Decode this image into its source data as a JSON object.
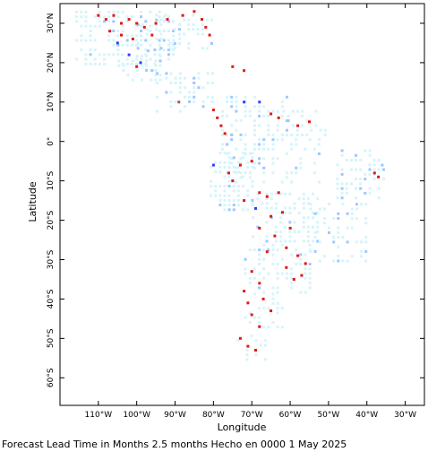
{
  "map": {
    "xlabel": "Longitude",
    "ylabel": "Latitude",
    "caption": "Forecast Lead Time in Months 2.5 months Hecho en 0000 1 May 2025",
    "lon_range": [
      -120,
      -25
    ],
    "lat_range": [
      -67,
      35
    ],
    "lon_ticks": [
      {
        "value": -110,
        "label": "110°W"
      },
      {
        "value": -100,
        "label": "100°W"
      },
      {
        "value": -90,
        "label": "90°W"
      },
      {
        "value": -80,
        "label": "80°W"
      },
      {
        "value": -70,
        "label": "70°W"
      },
      {
        "value": -60,
        "label": "60°W"
      },
      {
        "value": -50,
        "label": "50°W"
      },
      {
        "value": -40,
        "label": "40°W"
      },
      {
        "value": -30,
        "label": "30°W"
      }
    ],
    "lat_ticks": [
      {
        "value": 30,
        "label": "30°N"
      },
      {
        "value": 20,
        "label": "20°N"
      },
      {
        "value": 10,
        "label": "10°N"
      },
      {
        "value": 0,
        "label": "0°"
      },
      {
        "value": -10,
        "label": "10°S"
      },
      {
        "value": -20,
        "label": "20°S"
      },
      {
        "value": -30,
        "label": "30°S"
      },
      {
        "value": -40,
        "label": "40°S"
      },
      {
        "value": -50,
        "label": "50°S"
      },
      {
        "value": -60,
        "label": "60°S"
      }
    ],
    "colors": {
      "light_fill": "#d6f4fb",
      "pale_blue": "#9ec8ff",
      "blue": "#2f3cff",
      "red": "#e01818",
      "brown": "#a55555"
    },
    "regions": [
      {
        "name": "mexico-north",
        "lon": [
          -116,
          -90
        ],
        "lat": [
          20,
          33.5
        ],
        "density": 0.55
      },
      {
        "name": "mexico-gulf",
        "lon": [
          -100,
          -80
        ],
        "lat": [
          24,
          33
        ],
        "density": 0.35
      },
      {
        "name": "mexico-south",
        "lon": [
          -105,
          -94
        ],
        "lat": [
          16,
          22
        ],
        "density": 0.55
      },
      {
        "name": "central-america",
        "lon": [
          -95,
          -80
        ],
        "lat": [
          8,
          18
        ],
        "density": 0.35
      },
      {
        "name": "colombia-venezuela",
        "lon": [
          -78,
          -60
        ],
        "lat": [
          2,
          12
        ],
        "density": 0.45
      },
      {
        "name": "guianas",
        "lon": [
          -62,
          -50
        ],
        "lat": [
          2,
          8
        ],
        "density": 0.3
      },
      {
        "name": "amazon",
        "lon": [
          -78,
          -52
        ],
        "lat": [
          -10,
          2
        ],
        "density": 0.3
      },
      {
        "name": "andes-peru",
        "lon": [
          -81,
          -70
        ],
        "lat": [
          -17,
          -2
        ],
        "density": 0.5
      },
      {
        "name": "brazil-east",
        "lon": [
          -48,
          -35
        ],
        "lat": [
          -14,
          -2
        ],
        "density": 0.4
      },
      {
        "name": "bolivia-paraguay",
        "lon": [
          -70,
          -52
        ],
        "lat": [
          -25,
          -12
        ],
        "density": 0.45
      },
      {
        "name": "brazil-south",
        "lon": [
          -55,
          -40
        ],
        "lat": [
          -30,
          -15
        ],
        "density": 0.35
      },
      {
        "name": "argentina-north",
        "lon": [
          -72,
          -55
        ],
        "lat": [
          -38,
          -25
        ],
        "density": 0.4
      },
      {
        "name": "argentina-central",
        "lon": [
          -72,
          -62
        ],
        "lat": [
          -48,
          -38
        ],
        "density": 0.35
      },
      {
        "name": "patagonia",
        "lon": [
          -74,
          -66
        ],
        "lat": [
          -55,
          -48
        ],
        "density": 0.3
      }
    ],
    "markers": [
      {
        "lon": -110,
        "lat": 32,
        "level": "red"
      },
      {
        "lon": -108,
        "lat": 31,
        "level": "red"
      },
      {
        "lon": -106,
        "lat": 32,
        "level": "red"
      },
      {
        "lon": -104,
        "lat": 30,
        "level": "red"
      },
      {
        "lon": -102,
        "lat": 31,
        "level": "red"
      },
      {
        "lon": -100,
        "lat": 30,
        "level": "red"
      },
      {
        "lon": -98,
        "lat": 29,
        "level": "red"
      },
      {
        "lon": -107,
        "lat": 28,
        "level": "red"
      },
      {
        "lon": -104,
        "lat": 27,
        "level": "red"
      },
      {
        "lon": -101,
        "lat": 26,
        "level": "red"
      },
      {
        "lon": -96,
        "lat": 27,
        "level": "red"
      },
      {
        "lon": -95,
        "lat": 30,
        "level": "red"
      },
      {
        "lon": -92,
        "lat": 31,
        "level": "red"
      },
      {
        "lon": -88,
        "lat": 32,
        "level": "red"
      },
      {
        "lon": -85,
        "lat": 33,
        "level": "red"
      },
      {
        "lon": -83,
        "lat": 31,
        "level": "red"
      },
      {
        "lon": -82,
        "lat": 29,
        "level": "red"
      },
      {
        "lon": -81,
        "lat": 27,
        "level": "red"
      },
      {
        "lon": -105,
        "lat": 25,
        "level": "blue"
      },
      {
        "lon": -102,
        "lat": 22,
        "level": "blue"
      },
      {
        "lon": -99,
        "lat": 20,
        "level": "blue"
      },
      {
        "lon": -97,
        "lat": 23,
        "level": "pale"
      },
      {
        "lon": -100,
        "lat": 19,
        "level": "red"
      },
      {
        "lon": -96,
        "lat": 18,
        "level": "pale"
      },
      {
        "lon": -75,
        "lat": 19,
        "level": "red"
      },
      {
        "lon": -72,
        "lat": 18,
        "level": "red"
      },
      {
        "lon": -80,
        "lat": 8,
        "level": "red"
      },
      {
        "lon": -79,
        "lat": 6,
        "level": "red"
      },
      {
        "lon": -78,
        "lat": 4,
        "level": "red"
      },
      {
        "lon": -77,
        "lat": 2,
        "level": "red"
      },
      {
        "lon": -65,
        "lat": 7,
        "level": "red"
      },
      {
        "lon": -63,
        "lat": 6,
        "level": "red"
      },
      {
        "lon": -58,
        "lat": 4,
        "level": "red"
      },
      {
        "lon": -55,
        "lat": 5,
        "level": "red"
      },
      {
        "lon": -72,
        "lat": 10,
        "level": "blue"
      },
      {
        "lon": -68,
        "lat": 10,
        "level": "blue"
      },
      {
        "lon": -89,
        "lat": 10,
        "level": "brown"
      },
      {
        "lon": -80,
        "lat": -6,
        "level": "blue"
      },
      {
        "lon": -76,
        "lat": -8,
        "level": "red"
      },
      {
        "lon": -75,
        "lat": -10,
        "level": "red"
      },
      {
        "lon": -73,
        "lat": -6,
        "level": "red"
      },
      {
        "lon": -70,
        "lat": -5,
        "level": "red"
      },
      {
        "lon": -72,
        "lat": -15,
        "level": "red"
      },
      {
        "lon": -68,
        "lat": -13,
        "level": "red"
      },
      {
        "lon": -66,
        "lat": -14,
        "level": "red"
      },
      {
        "lon": -63,
        "lat": -13,
        "level": "red"
      },
      {
        "lon": -69,
        "lat": -17,
        "level": "blue"
      },
      {
        "lon": -65,
        "lat": -19,
        "level": "red"
      },
      {
        "lon": -62,
        "lat": -18,
        "level": "red"
      },
      {
        "lon": -68,
        "lat": -22,
        "level": "red"
      },
      {
        "lon": -64,
        "lat": -24,
        "level": "red"
      },
      {
        "lon": -60,
        "lat": -22,
        "level": "red"
      },
      {
        "lon": -66,
        "lat": -28,
        "level": "red"
      },
      {
        "lon": -61,
        "lat": -27,
        "level": "red"
      },
      {
        "lon": -58,
        "lat": -29,
        "level": "red"
      },
      {
        "lon": -56,
        "lat": -31,
        "level": "red"
      },
      {
        "lon": -57,
        "lat": -34,
        "level": "red"
      },
      {
        "lon": -59,
        "lat": -35,
        "level": "red"
      },
      {
        "lon": -61,
        "lat": -32,
        "level": "red"
      },
      {
        "lon": -70,
        "lat": -33,
        "level": "red"
      },
      {
        "lon": -68,
        "lat": -36,
        "level": "red"
      },
      {
        "lon": -72,
        "lat": -38,
        "level": "red"
      },
      {
        "lon": -71,
        "lat": -41,
        "level": "red"
      },
      {
        "lon": -67,
        "lat": -40,
        "level": "red"
      },
      {
        "lon": -65,
        "lat": -43,
        "level": "red"
      },
      {
        "lon": -70,
        "lat": -44,
        "level": "red"
      },
      {
        "lon": -68,
        "lat": -47,
        "level": "red"
      },
      {
        "lon": -73,
        "lat": -50,
        "level": "red"
      },
      {
        "lon": -71,
        "lat": -52,
        "level": "red"
      },
      {
        "lon": -69,
        "lat": -53,
        "level": "red"
      },
      {
        "lon": -38,
        "lat": -8,
        "level": "red"
      },
      {
        "lon": -37,
        "lat": -9,
        "level": "red"
      },
      {
        "lon": -36,
        "lat": -6,
        "level": "pale"
      }
    ]
  }
}
